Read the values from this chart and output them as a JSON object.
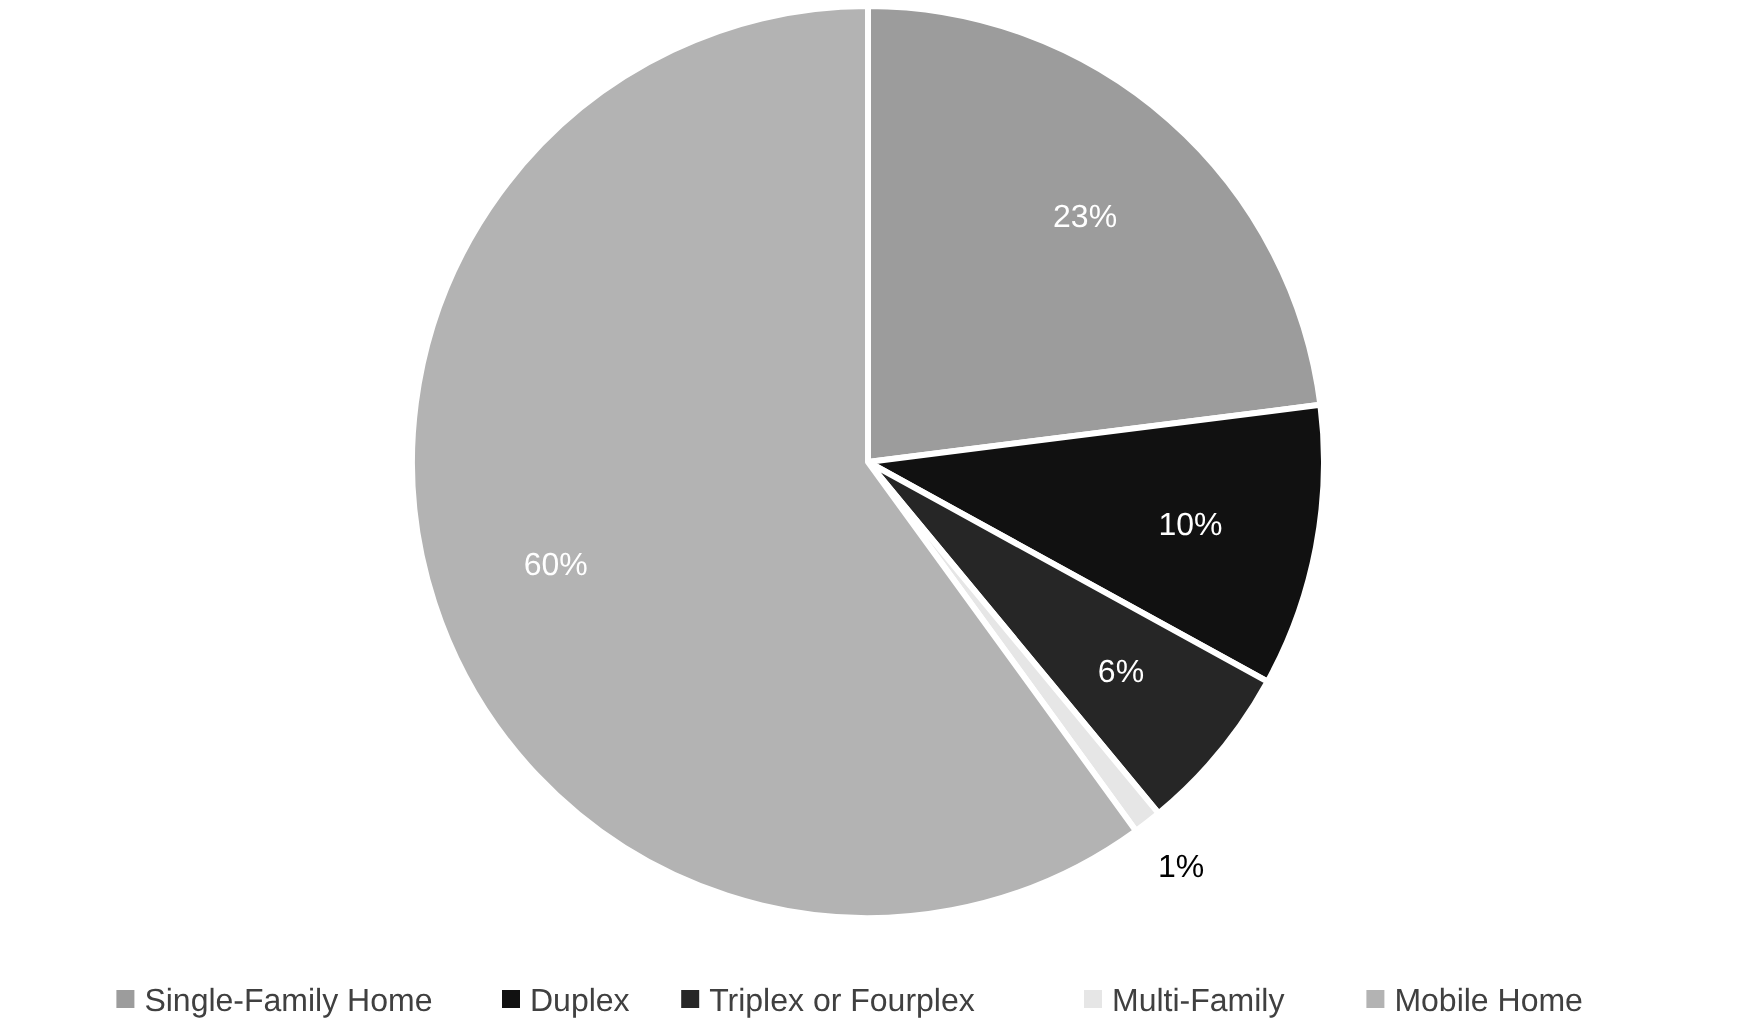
{
  "chart_data": {
    "type": "pie",
    "categories": [
      "Single-Family Home",
      "Duplex",
      "Triplex or Fourplex",
      "Multi-Family",
      "Mobile Home"
    ],
    "values": [
      23,
      10,
      6,
      1,
      60
    ],
    "colors": [
      "#9c9c9c",
      "#111111",
      "#262626",
      "#e6e6e6",
      "#b3b3b3"
    ],
    "value_labels": [
      "23%",
      "10%",
      "6%",
      "1%",
      "60%"
    ],
    "legend": "bottom"
  }
}
